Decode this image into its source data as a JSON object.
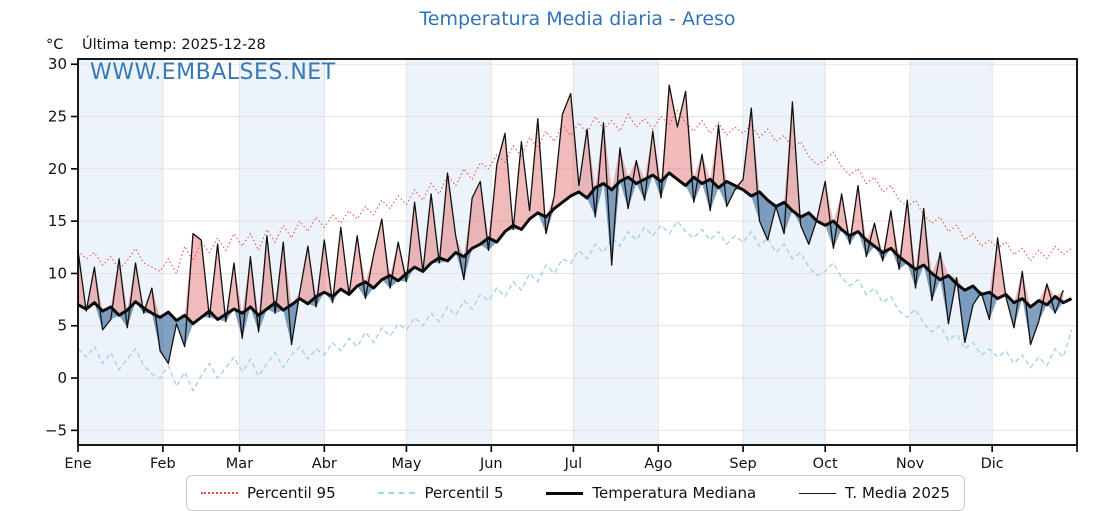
{
  "title": "Temperatura Media diaria - Areso",
  "subtitle": {
    "units": "°C",
    "last_temp": "Última temp: 2025-12-28"
  },
  "watermark": "WWW.EMBALSES.NET",
  "legend": {
    "items": [
      {
        "label": "Percentil 95",
        "style": "dotted",
        "color": "#e84b4b"
      },
      {
        "label": "Percentil 5",
        "style": "dashed",
        "color": "#a8d2e8"
      },
      {
        "label": "Temperatura Mediana",
        "style": "solid-thick",
        "color": "#0a0a0a"
      },
      {
        "label": "T. Media 2025",
        "style": "solid-thin",
        "color": "#111111"
      }
    ]
  },
  "colors": {
    "title_blue": "#3273b5",
    "watermark_blue": "#3679b5",
    "month_band": "#edf3fa",
    "grid": "#e3e3e3",
    "p95_line": "#e84b4b",
    "p5_line": "#a8d2e8",
    "median_line": "#0a0a0a",
    "t2025_line": "#111111",
    "fill_above": "rgba(224,92,94,0.42)",
    "fill_below": "rgba(47,98,150,0.60)",
    "spine": "#000000"
  },
  "chart_data": {
    "type": "line",
    "title": "Temperatura Media diaria - Areso",
    "ylabel": "°C",
    "ylim": [
      -6.4,
      30.5
    ],
    "grid": true,
    "legend_position": "bottom-center",
    "x_unit": "day-of-year",
    "sample_step_days": 3,
    "days_in_year": 365,
    "month_labels": [
      "Ene",
      "Feb",
      "Mar",
      "Abr",
      "May",
      "Jun",
      "Jul",
      "Ago",
      "Sep",
      "Oct",
      "Nov",
      "Dic"
    ],
    "month_start_days": [
      0,
      31,
      59,
      90,
      120,
      151,
      181,
      212,
      243,
      273,
      304,
      334,
      365
    ],
    "y_tick_values": [
      30,
      25,
      20,
      15,
      10,
      5,
      0,
      -5
    ],
    "y_tick_labels": [
      "30",
      "25",
      "20",
      "15",
      "10",
      "5",
      "0",
      "−5"
    ],
    "series": [
      {
        "name": "Percentil 95",
        "values": [
          12.2,
          11.4,
          12.0,
          10.8,
          11.6,
          10.4,
          11.2,
          12.4,
          11.0,
          10.6,
          10.2,
          11.4,
          10.0,
          12.6,
          11.2,
          13.0,
          12.0,
          13.4,
          12.2,
          13.8,
          12.6,
          13.8,
          12.2,
          14.2,
          13.0,
          14.6,
          13.4,
          15.0,
          14.0,
          15.4,
          14.4,
          15.6,
          14.8,
          16.0,
          15.2,
          16.4,
          15.6,
          17.0,
          16.2,
          17.4,
          16.6,
          18.0,
          17.0,
          18.6,
          17.6,
          19.4,
          18.4,
          20.0,
          19.0,
          20.6,
          20.0,
          21.4,
          20.6,
          22.2,
          21.2,
          23.0,
          22.0,
          23.6,
          22.6,
          24.2,
          23.2,
          24.4,
          23.4,
          25.0,
          23.8,
          24.6,
          23.6,
          25.2,
          24.0,
          24.8,
          23.8,
          25.0,
          24.2,
          25.6,
          24.4,
          23.6,
          24.6,
          23.4,
          24.4,
          23.2,
          24.0,
          23.4,
          24.2,
          23.0,
          23.8,
          22.6,
          23.2,
          22.0,
          22.6,
          21.2,
          20.4,
          20.8,
          21.6,
          20.2,
          19.4,
          20.0,
          18.6,
          19.2,
          17.8,
          18.4,
          17.0,
          16.4,
          17.0,
          15.6,
          14.8,
          15.4,
          14.0,
          14.6,
          13.2,
          13.8,
          12.6,
          13.2,
          12.4,
          13.0,
          11.8,
          12.4,
          11.2,
          12.2,
          11.4,
          12.6,
          11.8,
          12.4
        ]
      },
      {
        "name": "Percentil 5",
        "values": [
          2.8,
          2.0,
          3.0,
          1.4,
          2.4,
          0.8,
          1.8,
          2.8,
          1.2,
          0.4,
          0.0,
          1.2,
          -0.8,
          0.6,
          -1.2,
          0.2,
          1.4,
          0.0,
          1.0,
          2.0,
          0.6,
          1.8,
          0.2,
          1.4,
          2.4,
          1.0,
          2.2,
          3.0,
          1.8,
          2.8,
          2.2,
          3.4,
          2.6,
          3.8,
          3.0,
          4.4,
          3.4,
          4.8,
          4.0,
          5.2,
          4.6,
          5.8,
          5.0,
          6.2,
          5.4,
          6.8,
          6.0,
          7.4,
          6.6,
          8.0,
          7.4,
          8.6,
          7.8,
          9.2,
          8.4,
          10.0,
          9.2,
          10.8,
          10.0,
          11.4,
          11.0,
          12.2,
          11.4,
          12.8,
          12.0,
          13.4,
          12.6,
          14.0,
          13.2,
          14.4,
          13.6,
          14.6,
          13.8,
          15.0,
          14.0,
          13.4,
          14.2,
          13.2,
          14.0,
          12.8,
          13.6,
          13.0,
          14.0,
          12.6,
          13.4,
          12.0,
          12.8,
          11.4,
          12.0,
          10.6,
          9.8,
          10.2,
          11.0,
          9.6,
          8.8,
          9.4,
          8.0,
          8.6,
          7.2,
          7.8,
          6.4,
          5.8,
          6.6,
          5.2,
          4.4,
          5.0,
          3.6,
          4.2,
          2.8,
          3.4,
          2.2,
          2.8,
          2.0,
          2.6,
          1.4,
          2.2,
          1.0,
          2.0,
          1.2,
          2.8,
          2.0,
          4.6
        ]
      },
      {
        "name": "Temperatura Mediana",
        "values": [
          7.0,
          6.6,
          7.2,
          6.4,
          6.8,
          6.0,
          6.5,
          7.3,
          6.7,
          6.2,
          5.8,
          6.3,
          5.5,
          6.0,
          5.2,
          5.8,
          6.4,
          5.6,
          6.1,
          6.6,
          6.2,
          6.8,
          6.0,
          6.6,
          7.2,
          6.5,
          7.0,
          7.6,
          7.1,
          7.8,
          8.2,
          7.8,
          8.5,
          8.0,
          8.8,
          9.2,
          8.6,
          9.4,
          9.8,
          9.3,
          10.0,
          10.6,
          10.2,
          11.0,
          11.5,
          11.2,
          12.0,
          11.6,
          12.4,
          12.8,
          13.4,
          13.0,
          14.0,
          14.6,
          14.2,
          15.2,
          15.8,
          15.4,
          16.2,
          16.8,
          17.4,
          17.8,
          17.2,
          18.2,
          18.6,
          18.0,
          18.8,
          19.2,
          18.6,
          19.0,
          19.4,
          18.8,
          19.6,
          19.0,
          18.4,
          19.2,
          18.6,
          19.0,
          18.2,
          18.8,
          18.4,
          18.0,
          17.4,
          17.8,
          17.0,
          16.4,
          16.8,
          16.0,
          15.4,
          15.8,
          15.0,
          14.6,
          15.0,
          14.2,
          13.6,
          14.0,
          13.2,
          12.6,
          12.0,
          12.4,
          11.6,
          11.0,
          10.4,
          10.8,
          10.0,
          9.4,
          9.8,
          9.0,
          8.4,
          8.8,
          8.0,
          8.2,
          7.6,
          8.0,
          7.2,
          7.6,
          6.8,
          7.4,
          7.0,
          7.8,
          7.2,
          7.6
        ]
      },
      {
        "name": "T. Media 2025",
        "ends_day": 360,
        "values": [
          12.2,
          6.4,
          10.6,
          4.6,
          5.6,
          11.4,
          4.8,
          11.0,
          6.2,
          8.6,
          2.6,
          1.4,
          5.2,
          3.0,
          13.8,
          13.2,
          5.8,
          12.8,
          5.4,
          11.0,
          3.8,
          11.6,
          4.4,
          13.6,
          6.2,
          13.0,
          3.2,
          8.2,
          12.6,
          6.8,
          13.2,
          7.2,
          14.4,
          8.0,
          13.6,
          7.6,
          11.8,
          15.2,
          8.6,
          13.0,
          9.2,
          16.8,
          10.2,
          17.6,
          11.0,
          19.6,
          13.6,
          9.4,
          17.2,
          18.8,
          12.2,
          20.4,
          23.4,
          14.2,
          22.6,
          16.0,
          24.8,
          13.8,
          17.4,
          25.2,
          27.2,
          18.4,
          23.8,
          15.4,
          24.4,
          10.8,
          22.0,
          16.2,
          20.8,
          17.0,
          23.6,
          17.2,
          28.0,
          24.0,
          27.4,
          16.8,
          21.4,
          16.0,
          24.2,
          16.4,
          18.0,
          19.0,
          25.8,
          15.0,
          13.2,
          16.4,
          13.8,
          26.4,
          14.6,
          12.8,
          15.2,
          18.8,
          12.4,
          17.6,
          12.8,
          18.4,
          11.6,
          14.8,
          11.2,
          16.0,
          10.4,
          17.0,
          8.6,
          16.2,
          7.4,
          12.0,
          5.2,
          9.6,
          3.4,
          7.0,
          8.2,
          5.6,
          13.4,
          7.8,
          4.8,
          10.2,
          3.2,
          5.4,
          9.0,
          6.2,
          8.4
        ]
      }
    ]
  }
}
